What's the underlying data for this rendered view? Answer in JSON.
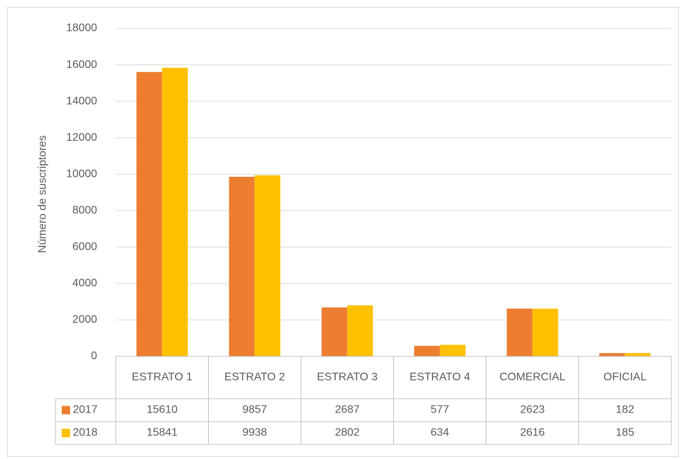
{
  "chart_data": {
    "type": "bar",
    "y_label": "Número de suscriptores",
    "categories": [
      "ESTRATO 1",
      "ESTRATO 2",
      "ESTRATO 3",
      "ESTRATO 4",
      "COMERCIAL",
      "OFICIAL"
    ],
    "series": [
      {
        "name": "2017",
        "color": "#ED7D31",
        "values": [
          15610,
          9857,
          2687,
          577,
          2623,
          182
        ]
      },
      {
        "name": "2018",
        "color": "#FFC000",
        "values": [
          15841,
          9938,
          2802,
          634,
          2616,
          185
        ]
      }
    ],
    "ylim": [
      0,
      18000
    ],
    "yticks": [
      0,
      2000,
      4000,
      6000,
      8000,
      10000,
      12000,
      14000,
      16000,
      18000
    ],
    "grid": true,
    "data_table": true
  }
}
